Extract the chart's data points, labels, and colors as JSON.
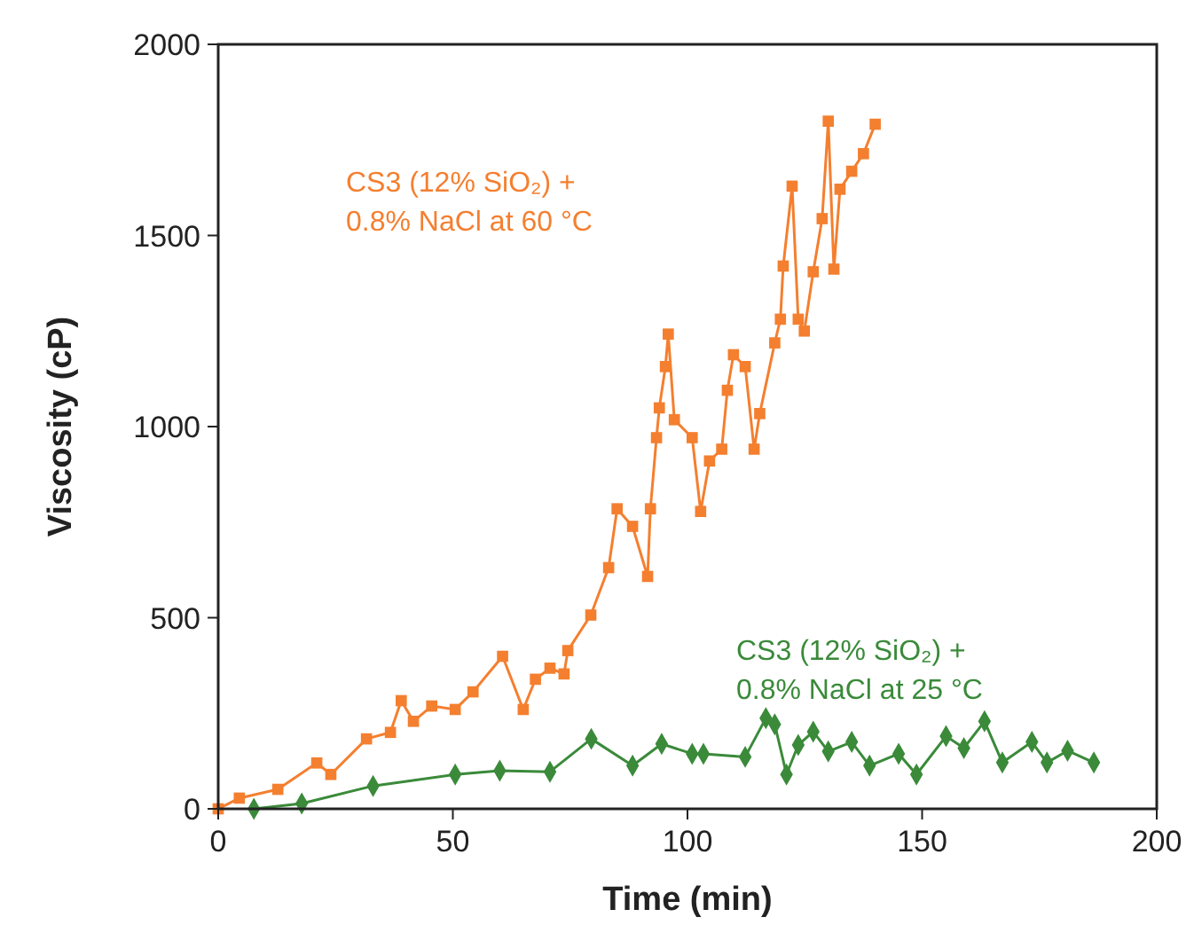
{
  "chart_data": {
    "type": "line",
    "xlabel": "Time (min)",
    "ylabel": "Viscosity (cP)",
    "xlim": [
      0,
      200
    ],
    "xticks": [
      0,
      50,
      100,
      150,
      200
    ],
    "ylim": [
      0,
      2000
    ],
    "yticks": [
      0,
      500,
      1000,
      1500,
      2000
    ],
    "grid": false,
    "line_style": "solid",
    "series": [
      {
        "name": "CS3 (12% SiO₂) + 0.8% NaCl at 60 °C",
        "color": "#f47f2f",
        "marker": "square",
        "x": [
          0,
          4.5,
          12.7,
          21,
          24,
          31.6,
          36.7,
          39,
          41.6,
          45.5,
          50.5,
          54.3,
          60.6,
          65,
          67.6,
          70.7,
          73.7,
          74.5,
          79.4,
          83.2,
          85,
          88.3,
          91.5,
          92.1,
          93.4,
          94,
          95.3,
          95.9,
          97.2,
          101,
          102.8,
          104.7,
          107.3,
          108.5,
          109.8,
          112.3,
          114.2,
          115.4,
          118.6,
          119.8,
          120.4,
          122.3,
          123.6,
          124.9,
          126.8,
          128.7,
          130,
          131.2,
          132.5,
          135,
          137.5,
          140
        ],
        "values": [
          0,
          28,
          51,
          120,
          90,
          183,
          200,
          283,
          229,
          269,
          260,
          306,
          399,
          260,
          339,
          368,
          353,
          414,
          507,
          631,
          785,
          739,
          608,
          785,
          971,
          1049,
          1157,
          1242,
          1018,
          971,
          778,
          910,
          941,
          1095,
          1188,
          1157,
          941,
          1034,
          1219,
          1281,
          1420,
          1629,
          1281,
          1250,
          1405,
          1544,
          1799,
          1412,
          1621,
          1668,
          1714,
          1791
        ]
      },
      {
        "name": "CS3 (12% SiO₂) + 0.8% NaCl at 25 °C",
        "color": "#3a8a3a",
        "marker": "diamond",
        "x": [
          7.6,
          17.8,
          33,
          50.5,
          60,
          70.7,
          79.5,
          88.3,
          94.5,
          101,
          103.4,
          112.3,
          116.7,
          118.6,
          121.1,
          123.6,
          126.8,
          130,
          135,
          138.8,
          145,
          148.8,
          155.1,
          158.9,
          163.3,
          167.1,
          173.4,
          176.6,
          181,
          186.6
        ],
        "values": [
          0,
          14,
          60,
          90,
          100,
          97,
          183,
          113,
          170,
          144,
          144,
          136,
          237,
          221,
          90,
          167,
          202,
          150,
          175,
          113,
          144,
          90,
          190,
          159,
          229,
          121,
          175,
          121,
          152,
          121
        ]
      }
    ]
  }
}
